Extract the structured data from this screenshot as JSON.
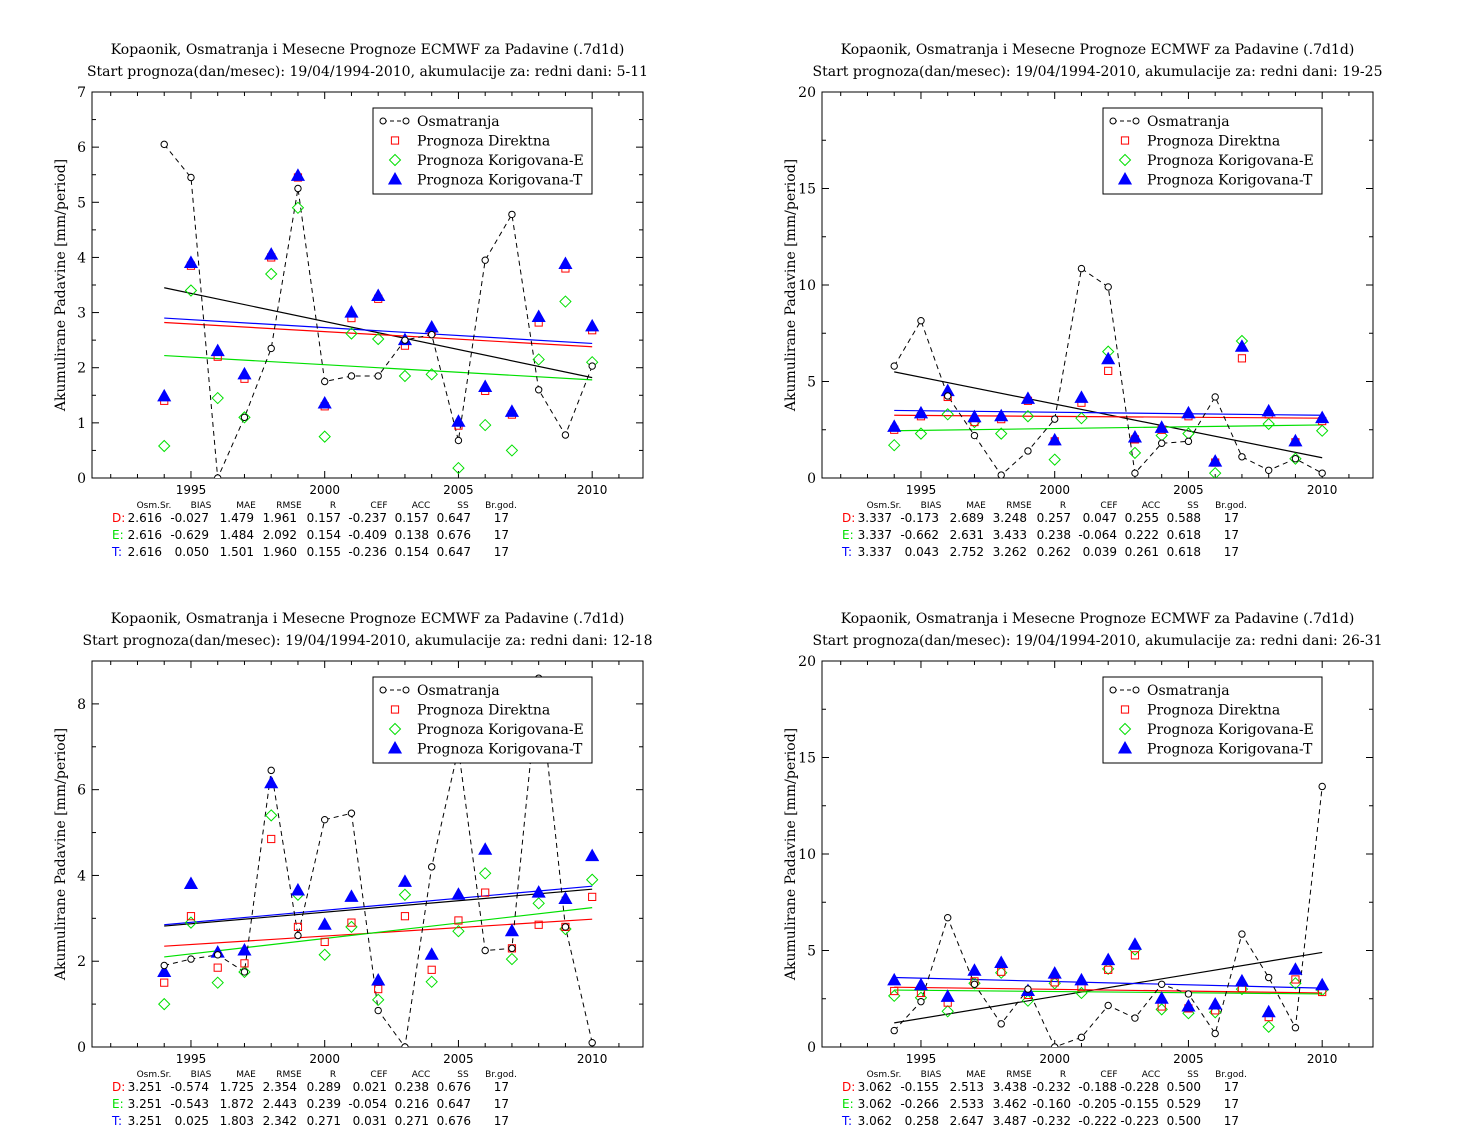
{
  "panels": [
    {
      "title1": "Kopaonik, Osmatranja i Mesecne Prognoze ECMWF za Padavine (.7d1d)",
      "title2": "Start prognoza(dan/mesec): 19/04/1994-2010, akumulacije za: redni dani: 5-11",
      "ylabel": "Akumulirane Padavine [mm/period]"
    },
    {
      "title1": "Kopaonik, Osmatranja i Mesecne Prognoze ECMWF za Padavine (.7d1d)",
      "title2": "Start prognoza(dan/mesec): 19/04/1994-2010, akumulacije za: redni dani: 19-25",
      "ylabel": "Akumulirane Padavine [mm/period]"
    },
    {
      "title1": "Kopaonik, Osmatranja i Mesecne Prognoze ECMWF za Padavine (.7d1d)",
      "title2": "Start prognoza(dan/mesec): 19/04/1994-2010, akumulacije za: redni dani: 12-18",
      "ylabel": "Akumulirane Padavine [mm/period]"
    },
    {
      "title1": "Kopaonik, Osmatranja i Mesecne Prognoze ECMWF za Padavine (.7d1d)",
      "title2": "Start prognoza(dan/mesec): 19/04/1994-2010, akumulacije za: redni dani: 26-31",
      "ylabel": "Akumulirane Padavine [mm/period]"
    }
  ],
  "legend": [
    "Osmatranja",
    "Prognoza Direktna",
    "Prognoza Korigovana-E",
    "Prognoza Korigovana-T"
  ],
  "stats_header": [
    "Osm.Sr.",
    "BIAS",
    "MAE",
    "RMSE",
    "R",
    "CEF",
    "ACC",
    "SS",
    "Br.god."
  ],
  "stats": [
    [
      {
        "label": "D:",
        "values": [
          "2.616",
          "-0.027",
          "1.479",
          "1.961",
          "0.157",
          "-0.237",
          "0.157",
          "0.647",
          "17"
        ]
      },
      {
        "label": "E:",
        "values": [
          "2.616",
          "-0.629",
          "1.484",
          "2.092",
          "0.154",
          "-0.409",
          "0.138",
          "0.676",
          "17"
        ]
      },
      {
        "label": "T:",
        "values": [
          "2.616",
          "0.050",
          "1.501",
          "1.960",
          "0.155",
          "-0.236",
          "0.154",
          "0.647",
          "17"
        ]
      }
    ],
    [
      {
        "label": "D:",
        "values": [
          "3.337",
          "-0.173",
          "2.689",
          "3.248",
          "0.257",
          "0.047",
          "0.255",
          "0.588",
          "17"
        ]
      },
      {
        "label": "E:",
        "values": [
          "3.337",
          "-0.662",
          "2.631",
          "3.433",
          "0.238",
          "-0.064",
          "0.222",
          "0.618",
          "17"
        ]
      },
      {
        "label": "T:",
        "values": [
          "3.337",
          "0.043",
          "2.752",
          "3.262",
          "0.262",
          "0.039",
          "0.261",
          "0.618",
          "17"
        ]
      }
    ],
    [
      {
        "label": "D:",
        "values": [
          "3.251",
          "-0.574",
          "1.725",
          "2.354",
          "0.289",
          "0.021",
          "0.238",
          "0.676",
          "17"
        ]
      },
      {
        "label": "E:",
        "values": [
          "3.251",
          "-0.543",
          "1.872",
          "2.443",
          "0.239",
          "-0.054",
          "0.216",
          "0.647",
          "17"
        ]
      },
      {
        "label": "T:",
        "values": [
          "3.251",
          "0.025",
          "1.803",
          "2.342",
          "0.271",
          "0.031",
          "0.271",
          "0.676",
          "17"
        ]
      }
    ],
    [
      {
        "label": "D:",
        "values": [
          "3.062",
          "-0.155",
          "2.513",
          "3.438",
          "-0.232",
          "-0.188",
          "-0.228",
          "0.500",
          "17"
        ]
      },
      {
        "label": "E:",
        "values": [
          "3.062",
          "-0.266",
          "2.533",
          "3.462",
          "-0.160",
          "-0.205",
          "-0.155",
          "0.529",
          "17"
        ]
      },
      {
        "label": "T:",
        "values": [
          "3.062",
          "0.258",
          "2.647",
          "3.487",
          "-0.232",
          "-0.222",
          "-0.223",
          "0.500",
          "17"
        ]
      }
    ]
  ],
  "colors": {
    "obs": "#000000",
    "D": "#ff0000",
    "E": "#00e000",
    "T": "#0000ff"
  },
  "chart_data": [
    {
      "type": "scatter",
      "x": [
        1994,
        1995,
        1996,
        1997,
        1998,
        1999,
        2000,
        2001,
        2002,
        2003,
        2004,
        2005,
        2006,
        2007,
        2008,
        2009,
        2010
      ],
      "xlim": [
        1991.3,
        2011.9
      ],
      "ylim": [
        0,
        7
      ],
      "xticks": [
        1995,
        2000,
        2005,
        2010
      ],
      "yticks": [
        0,
        1,
        2,
        3,
        4,
        5,
        6,
        7
      ],
      "series": [
        {
          "name": "Osmatranja",
          "values": [
            6.05,
            5.45,
            0.0,
            1.1,
            2.35,
            5.25,
            1.75,
            1.85,
            1.85,
            2.5,
            2.6,
            0.68,
            3.95,
            4.78,
            1.6,
            0.78,
            2.03
          ]
        },
        {
          "name": "Prognoza Direktna",
          "values": [
            1.4,
            3.85,
            2.2,
            1.8,
            4.0,
            5.45,
            1.3,
            2.9,
            3.25,
            2.4,
            2.65,
            0.95,
            1.58,
            1.15,
            2.82,
            3.8,
            2.68
          ]
        },
        {
          "name": "Prognoza Korigovana-E",
          "values": [
            0.58,
            3.4,
            1.45,
            1.1,
            3.7,
            4.9,
            0.75,
            2.62,
            2.52,
            1.85,
            1.88,
            0.18,
            0.96,
            0.5,
            2.15,
            3.2,
            2.1
          ]
        },
        {
          "name": "Prognoza Korigovana-T",
          "values": [
            1.48,
            3.9,
            2.3,
            1.88,
            4.05,
            5.48,
            1.35,
            3.0,
            3.3,
            2.5,
            2.73,
            1.02,
            1.65,
            1.2,
            2.92,
            3.88,
            2.75
          ]
        }
      ],
      "trends": [
        {
          "name": "Osmatranja",
          "from": [
            1994,
            3.45
          ],
          "to": [
            2010,
            1.82
          ]
        },
        {
          "name": "Prognoza Direktna",
          "from": [
            1994,
            2.82
          ],
          "to": [
            2010,
            2.38
          ]
        },
        {
          "name": "Prognoza Korigovana-E",
          "from": [
            1994,
            2.22
          ],
          "to": [
            2010,
            1.78
          ]
        },
        {
          "name": "Prognoza Korigovana-T",
          "from": [
            1994,
            2.9
          ],
          "to": [
            2010,
            2.44
          ]
        }
      ]
    },
    {
      "type": "scatter",
      "x": [
        1994,
        1995,
        1996,
        1997,
        1998,
        1999,
        2000,
        2001,
        2002,
        2003,
        2004,
        2005,
        2006,
        2007,
        2008,
        2009,
        2010
      ],
      "xlim": [
        1991.3,
        2011.9
      ],
      "ylim": [
        0,
        20
      ],
      "xticks": [
        1995,
        2000,
        2005,
        2010
      ],
      "yticks": [
        0,
        5,
        10,
        15,
        20
      ],
      "series": [
        {
          "name": "Osmatranja",
          "values": [
            5.8,
            8.15,
            4.25,
            2.2,
            0.15,
            1.4,
            3.05,
            10.85,
            9.9,
            0.25,
            1.8,
            1.9,
            4.2,
            1.1,
            0.4,
            1.0,
            0.25
          ]
        },
        {
          "name": "Prognoza Direktna",
          "values": [
            2.5,
            3.2,
            4.2,
            2.9,
            3.05,
            4.0,
            1.9,
            3.9,
            5.55,
            2.0,
            2.5,
            3.2,
            0.8,
            6.2,
            3.3,
            1.85,
            2.95
          ]
        },
        {
          "name": "Prognoza Korigovana-E",
          "values": [
            1.7,
            2.3,
            3.3,
            2.9,
            2.3,
            3.2,
            0.95,
            3.1,
            6.55,
            1.3,
            2.2,
            2.3,
            0.25,
            7.1,
            2.8,
            1.0,
            2.45
          ]
        },
        {
          "name": "Prognoza Korigovana-T",
          "values": [
            2.65,
            3.35,
            4.5,
            3.15,
            3.2,
            4.1,
            1.95,
            4.15,
            6.15,
            2.1,
            2.6,
            3.35,
            0.85,
            6.8,
            3.45,
            1.9,
            3.1
          ]
        }
      ],
      "trends": [
        {
          "name": "Osmatranja",
          "from": [
            1994,
            5.5
          ],
          "to": [
            2010,
            1.05
          ]
        },
        {
          "name": "Prognoza Direktna",
          "from": [
            1994,
            3.25
          ],
          "to": [
            2010,
            3.1
          ]
        },
        {
          "name": "Prognoza Korigovana-E",
          "from": [
            1994,
            2.45
          ],
          "to": [
            2010,
            2.75
          ]
        },
        {
          "name": "Prognoza Korigovana-T",
          "from": [
            1994,
            3.5
          ],
          "to": [
            2010,
            3.25
          ]
        }
      ]
    },
    {
      "type": "scatter",
      "x": [
        1994,
        1995,
        1996,
        1997,
        1998,
        1999,
        2000,
        2001,
        2002,
        2003,
        2004,
        2005,
        2006,
        2007,
        2008,
        2009,
        2010
      ],
      "xlim": [
        1991.3,
        2011.9
      ],
      "ylim": [
        0,
        9
      ],
      "xticks": [
        1995,
        2000,
        2005,
        2010
      ],
      "yticks": [
        0,
        2,
        4,
        6,
        8
      ],
      "series": [
        {
          "name": "Osmatranja",
          "values": [
            1.9,
            2.05,
            2.15,
            1.75,
            6.45,
            2.6,
            5.3,
            5.45,
            0.85,
            0.0,
            4.2,
            6.95,
            2.25,
            2.3,
            8.6,
            2.8,
            0.1
          ]
        },
        {
          "name": "Prognoza Direktna",
          "values": [
            1.5,
            3.05,
            1.85,
            1.95,
            4.85,
            2.8,
            2.45,
            2.9,
            1.35,
            3.05,
            1.8,
            2.95,
            3.6,
            2.3,
            2.85,
            2.8,
            3.5
          ]
        },
        {
          "name": "Prognoza Korigovana-E",
          "values": [
            1.0,
            2.9,
            1.5,
            1.75,
            5.4,
            3.55,
            2.15,
            2.8,
            1.1,
            3.55,
            1.52,
            2.7,
            4.05,
            2.05,
            3.35,
            2.75,
            3.9
          ]
        },
        {
          "name": "Prognoza Korigovana-T",
          "values": [
            1.75,
            3.8,
            2.2,
            2.25,
            6.15,
            3.65,
            2.85,
            3.5,
            1.55,
            3.85,
            2.15,
            3.55,
            4.6,
            2.7,
            3.6,
            3.45,
            4.45
          ]
        }
      ],
      "trends": [
        {
          "name": "Prognoza Direktna",
          "from": [
            1994,
            2.35
          ],
          "to": [
            2010,
            2.98
          ]
        },
        {
          "name": "Prognoza Korigovana-E",
          "from": [
            1994,
            2.1
          ],
          "to": [
            2010,
            3.25
          ]
        },
        {
          "name": "Prognoza Korigovana-T",
          "from": [
            1994,
            2.85
          ],
          "to": [
            2010,
            3.75
          ]
        },
        {
          "name": "Osmatranja",
          "from": [
            1994,
            2.82
          ],
          "to": [
            2010,
            3.68
          ]
        }
      ]
    },
    {
      "type": "scatter",
      "x": [
        1994,
        1995,
        1996,
        1997,
        1998,
        1999,
        2000,
        2001,
        2002,
        2003,
        2004,
        2005,
        2006,
        2007,
        2008,
        2009,
        2010
      ],
      "xlim": [
        1991.3,
        2011.9
      ],
      "ylim": [
        0,
        20
      ],
      "xticks": [
        1995,
        2000,
        2005,
        2010
      ],
      "yticks": [
        0,
        5,
        10,
        15,
        20
      ],
      "series": [
        {
          "name": "Osmatranja",
          "values": [
            0.85,
            2.35,
            6.7,
            3.25,
            1.2,
            3.0,
            0.0,
            0.5,
            2.15,
            1.5,
            3.25,
            2.75,
            0.7,
            5.85,
            3.6,
            1.0,
            13.5
          ]
        },
        {
          "name": "Prognoza Direktna",
          "values": [
            2.9,
            2.8,
            2.3,
            3.4,
            3.9,
            2.7,
            3.35,
            3.1,
            4.0,
            4.75,
            2.1,
            2.0,
            1.9,
            3.05,
            1.55,
            3.5,
            2.85
          ]
        },
        {
          "name": "Prognoza Korigovana-E",
          "values": [
            2.65,
            2.55,
            1.85,
            3.3,
            3.85,
            2.4,
            3.3,
            2.8,
            4.05,
            5.05,
            1.95,
            1.75,
            1.8,
            3.0,
            1.05,
            3.3,
            2.95
          ]
        },
        {
          "name": "Prognoza Korigovana-T",
          "values": [
            3.45,
            3.2,
            2.6,
            3.95,
            4.35,
            2.9,
            3.8,
            3.45,
            4.5,
            5.3,
            2.5,
            2.1,
            2.2,
            3.4,
            1.8,
            4.0,
            3.2
          ]
        }
      ],
      "trends": [
        {
          "name": "Osmatranja",
          "from": [
            1994,
            1.25
          ],
          "to": [
            2010,
            4.9
          ]
        },
        {
          "name": "Prognoza Direktna",
          "from": [
            1994,
            3.1
          ],
          "to": [
            2010,
            2.8
          ]
        },
        {
          "name": "Prognoza Korigovana-E",
          "from": [
            1994,
            2.95
          ],
          "to": [
            2010,
            2.75
          ]
        },
        {
          "name": "Prognoza Korigovana-T",
          "from": [
            1994,
            3.6
          ],
          "to": [
            2010,
            3.05
          ]
        }
      ]
    }
  ]
}
